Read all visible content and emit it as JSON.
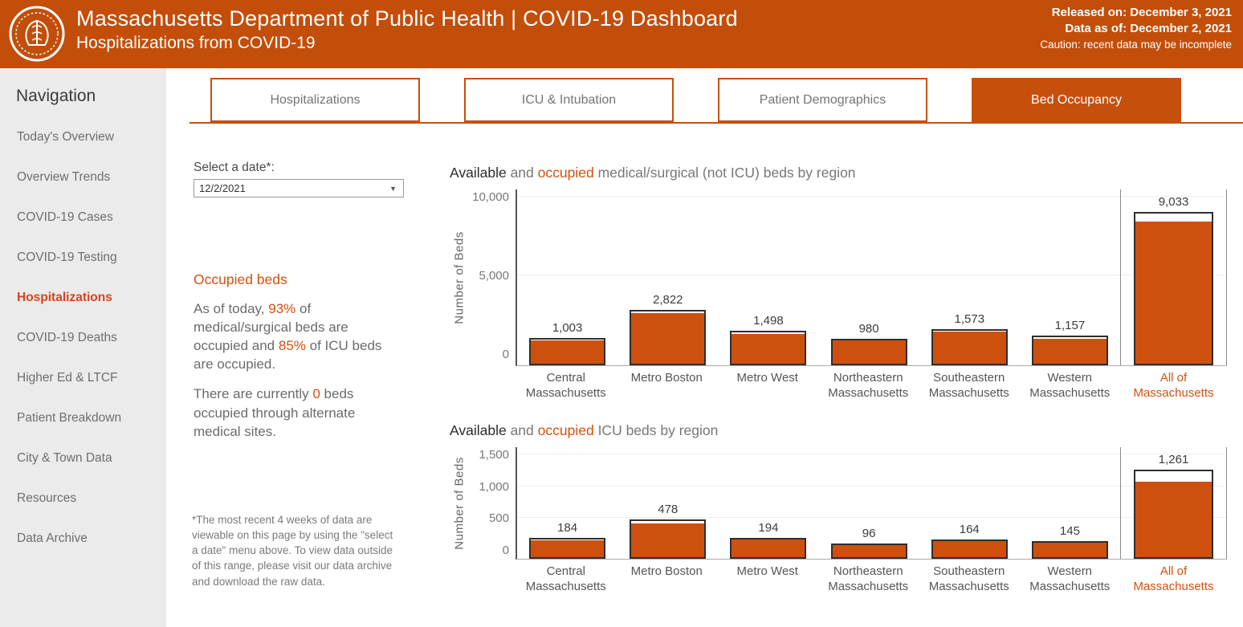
{
  "header": {
    "title": "Massachusetts Department of Public Health  |  COVID-19 Dashboard",
    "subtitle": "Hospitalizations from COVID-19",
    "released": "Released on: December 3, 2021",
    "data_as_of": "Data as of: December 2, 2021",
    "caution": "Caution: recent data may be incomplete",
    "logo_icon": "ma-dph-seal",
    "header_color": "#C24E0A"
  },
  "sidebar": {
    "heading": "Navigation",
    "items": [
      {
        "label": "Today's Overview",
        "active": false
      },
      {
        "label": "Overview Trends",
        "active": false
      },
      {
        "label": "COVID-19 Cases",
        "active": false
      },
      {
        "label": "COVID-19 Testing",
        "active": false
      },
      {
        "label": "Hospitalizations",
        "active": true
      },
      {
        "label": "COVID-19 Deaths",
        "active": false
      },
      {
        "label": "Higher Ed & LTCF",
        "active": false
      },
      {
        "label": "Patient Breakdown",
        "active": false
      },
      {
        "label": "City & Town Data",
        "active": false
      },
      {
        "label": "Resources",
        "active": false
      },
      {
        "label": "Data Archive",
        "active": false
      }
    ],
    "active_color": "#D9431C"
  },
  "tabs": [
    {
      "label": "Hospitalizations",
      "active": false
    },
    {
      "label": "ICU & Intubation",
      "active": false
    },
    {
      "label": "Patient Demographics",
      "active": false
    },
    {
      "label": "Bed Occupancy",
      "active": true
    }
  ],
  "controls": {
    "date_label": "Select a date*:",
    "date_value": "12/2/2021",
    "dropdown_icon": "chevron-down-icon",
    "occupied_heading": "Occupied beds",
    "p1": {
      "a": "As of today, ",
      "b": "93%",
      "c": " of medical/surgical beds are occupied and ",
      "d": "85%",
      "e": " of ICU beds are occupied."
    },
    "p2": {
      "a": "There are currently ",
      "b": "0",
      "c": " beds occupied through alternate medical sites."
    },
    "footnote": "*The most recent 4 weeks of data are viewable on this page by using the \"select a date\" menu above. To view data outside of this range, please visit our data archive and download the raw data."
  },
  "chart_data": [
    {
      "type": "bar",
      "subtype": "stacked-occupancy",
      "title_segments": {
        "t1": "Available",
        "t2": " and ",
        "t3": "occupied",
        "t4": " medical/surgical (not ICU) beds by region"
      },
      "ylabel": "Number of Beds",
      "ylim": [
        0,
        10000
      ],
      "yticks": [
        0,
        5000,
        10000
      ],
      "ytick_labels": [
        "0",
        "5,000",
        "10,000"
      ],
      "categories": [
        [
          "Central",
          "Massachusetts"
        ],
        [
          "Metro Boston"
        ],
        [
          "Metro West"
        ],
        [
          "Northeastern",
          "Massachusetts"
        ],
        [
          "Southeastern",
          "Massachusetts"
        ],
        [
          "Western",
          "Massachusetts"
        ],
        [
          "All of",
          "Massachusetts"
        ]
      ],
      "totals": [
        1003,
        2822,
        1498,
        980,
        1573,
        1157,
        9033
      ],
      "total_labels": [
        "1,003",
        "2,822",
        "1,498",
        "980",
        "1,573",
        "1,157",
        "9,033"
      ],
      "occupied_estimated": [
        880,
        2580,
        1300,
        930,
        1420,
        990,
        8401
      ],
      "occupied_note": "orange = occupied portion (unlabeled in chart, estimated from bar fill; statewide 93%)",
      "bar_color": "#CE500F",
      "legend_position": "none",
      "grid": "faint horizontal at ticks"
    },
    {
      "type": "bar",
      "subtype": "stacked-occupancy",
      "title_segments": {
        "t1": "Available",
        "t2": " and ",
        "t3": "occupied",
        "t4": " ICU beds by region"
      },
      "ylabel": "Number of Beds",
      "ylim": [
        0,
        1500
      ],
      "yticks": [
        0,
        500,
        1000,
        1500
      ],
      "ytick_labels": [
        "0",
        "500",
        "1,000",
        "1,500"
      ],
      "categories": [
        [
          "Central",
          "Massachusetts"
        ],
        [
          "Metro Boston"
        ],
        [
          "Metro West"
        ],
        [
          "Northeastern",
          "Massachusetts"
        ],
        [
          "Southeastern",
          "Massachusetts"
        ],
        [
          "Western",
          "Massachusetts"
        ],
        [
          "All of",
          "Massachusetts"
        ]
      ],
      "totals": [
        184,
        478,
        194,
        96,
        164,
        145,
        1261
      ],
      "total_labels": [
        "184",
        "478",
        "194",
        "96",
        "164",
        "145",
        "1,261"
      ],
      "occupied_estimated": [
        150,
        415,
        160,
        90,
        155,
        118,
        1072
      ],
      "occupied_note": "orange = occupied portion (unlabeled in chart, estimated from bar fill; statewide 85%)",
      "bar_color": "#CE500F",
      "legend_position": "none",
      "grid": "faint horizontal at ticks"
    }
  ]
}
